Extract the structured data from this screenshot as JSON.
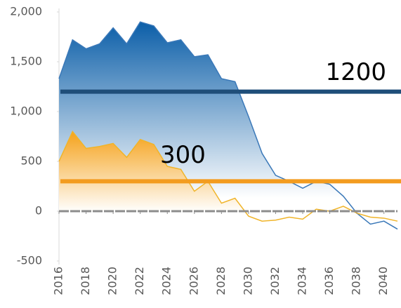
{
  "chart_data": {
    "type": "area",
    "x": [
      2016,
      2017,
      2018,
      2019,
      2020,
      2021,
      2022,
      2023,
      2024,
      2025,
      2026,
      2027,
      2028,
      2029,
      2030,
      2031,
      2032,
      2033,
      2034,
      2035,
      2036,
      2037,
      2038,
      2039,
      2040,
      2041
    ],
    "series": [
      {
        "color": "#3a78b8",
        "values": [
          1330,
          1720,
          1630,
          1680,
          1840,
          1680,
          1900,
          1860,
          1690,
          1720,
          1550,
          1570,
          1330,
          1300,
          950,
          580,
          360,
          300,
          230,
          300,
          270,
          150,
          -20,
          -130,
          -100,
          -180
        ]
      },
      {
        "color": "#f0b429",
        "values": [
          500,
          800,
          630,
          650,
          680,
          540,
          720,
          670,
          450,
          420,
          200,
          300,
          80,
          130,
          -50,
          -100,
          -90,
          -60,
          -80,
          20,
          0,
          50,
          -20,
          -60,
          -70,
          -100
        ]
      }
    ],
    "xlim": [
      2016,
      2041
    ],
    "xticks": [
      2016,
      2018,
      2020,
      2022,
      2024,
      2026,
      2028,
      2030,
      2032,
      2034,
      2036,
      2038,
      2040
    ],
    "ylim": [
      -500,
      2000
    ],
    "yticks": [
      {
        "value": -500,
        "label": "-500"
      },
      0,
      500,
      {
        "value": 1000,
        "label": "1,000"
      },
      {
        "value": 1500,
        "label": "1,500"
      },
      {
        "value": 2000,
        "label": "2,000"
      }
    ],
    "reference_lines": [
      {
        "value": 1200,
        "label": "1200",
        "color": "#1f4e79"
      },
      {
        "value": 300,
        "label": "300",
        "color": "#f39c1f"
      }
    ]
  }
}
